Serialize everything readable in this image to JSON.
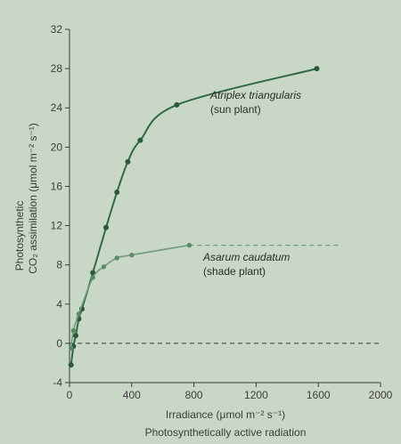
{
  "chart_data": {
    "type": "line",
    "title": "",
    "xlabel": "Irradiance (μmol m⁻² s⁻¹)",
    "xlabel_sub": "Photosynthetically active radiation",
    "ylabel_line1": "Photosynthetic",
    "ylabel_line2": "CO₂ assimilation (μmol m⁻² s⁻¹)",
    "xlim": [
      0,
      2000
    ],
    "ylim": [
      -4,
      32
    ],
    "x_ticks": [
      0,
      400,
      800,
      1200,
      1600,
      2000
    ],
    "y_ticks": [
      -4,
      0,
      4,
      8,
      12,
      16,
      20,
      24,
      28,
      32
    ],
    "grid": false,
    "reference_line_y": 0,
    "series": [
      {
        "name": "Atriplex triangularis",
        "label_line1": "Atriplex triangularis",
        "label_line2": "(sun plant)",
        "color": "#2f6a43",
        "points": [
          [
            10,
            -2.2
          ],
          [
            25,
            -0.3
          ],
          [
            40,
            0.8
          ],
          [
            60,
            2.5
          ],
          [
            80,
            3.5
          ],
          [
            150,
            7.2
          ],
          [
            235,
            11.8
          ],
          [
            305,
            15.4
          ],
          [
            375,
            18.5
          ],
          [
            455,
            20.7
          ],
          [
            690,
            24.3
          ],
          [
            1590,
            28.0
          ]
        ]
      },
      {
        "name": "Asarum caudatum",
        "label_line1": "Asarum caudatum",
        "label_line2": "(shade plant)",
        "color": "#6f9c7d",
        "points": [
          [
            10,
            -0.5
          ],
          [
            25,
            1.3
          ],
          [
            60,
            3.0
          ],
          [
            150,
            6.7
          ],
          [
            220,
            7.8
          ],
          [
            305,
            8.7
          ],
          [
            400,
            9.0
          ],
          [
            770,
            10.0
          ]
        ],
        "asymptote": 10.0
      }
    ]
  }
}
